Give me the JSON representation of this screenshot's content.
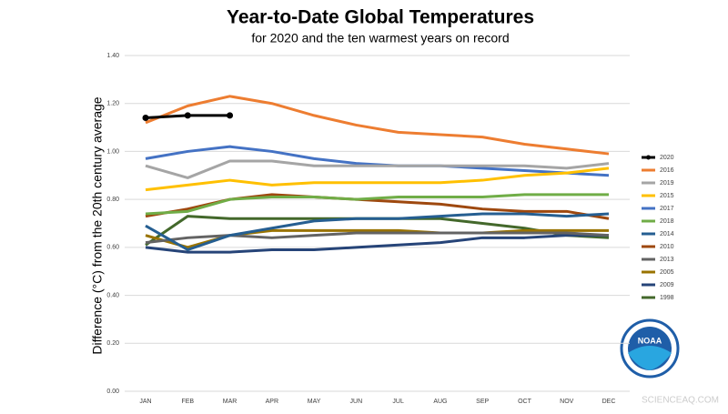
{
  "chart_data": {
    "type": "line",
    "title": "Year-to-Date Global Temperatures",
    "subtitle": "for 2020 and the ten warmest years on record",
    "y_label": "Difference (°C) from the 20th century average",
    "categories": [
      "JAN",
      "FEB",
      "MAR",
      "APR",
      "MAY",
      "JUN",
      "JUL",
      "AUG",
      "SEP",
      "OCT",
      "NOV",
      "DEC"
    ],
    "ylim": [
      0,
      1.4
    ],
    "yticks": [
      {
        "value": 0,
        "label": "0.00"
      },
      {
        "value": 0.2,
        "label": "0.20"
      },
      {
        "value": 0.4,
        "label": "0.40"
      },
      {
        "value": 0.6,
        "label": "0.60"
      },
      {
        "value": 0.8,
        "label": "0.80"
      },
      {
        "value": 1,
        "label": "1.00"
      },
      {
        "value": 1.2,
        "label": "1.20"
      },
      {
        "value": 1.4,
        "label": "1.40"
      }
    ],
    "grid": true,
    "legend": "right",
    "series": [
      {
        "name": "2020",
        "color": "#000000",
        "markers": true,
        "values": [
          1.14,
          1.15,
          1.15,
          null,
          null,
          null,
          null,
          null,
          null,
          null,
          null,
          null
        ]
      },
      {
        "name": "2016",
        "color": "#ed7d31",
        "values": [
          1.12,
          1.19,
          1.23,
          1.2,
          1.15,
          1.11,
          1.08,
          1.07,
          1.06,
          1.03,
          1.01,
          0.99
        ]
      },
      {
        "name": "2019",
        "color": "#a5a5a5",
        "values": [
          0.94,
          0.89,
          0.96,
          0.96,
          0.94,
          0.94,
          0.94,
          0.94,
          0.94,
          0.94,
          0.93,
          0.95
        ]
      },
      {
        "name": "2015",
        "color": "#ffc000",
        "values": [
          0.84,
          0.86,
          0.88,
          0.86,
          0.87,
          0.87,
          0.87,
          0.87,
          0.88,
          0.9,
          0.91,
          0.93
        ]
      },
      {
        "name": "2017",
        "color": "#4472c4",
        "values": [
          0.97,
          1.0,
          1.02,
          1.0,
          0.97,
          0.95,
          0.94,
          0.94,
          0.93,
          0.92,
          0.91,
          0.9
        ]
      },
      {
        "name": "2018",
        "color": "#70ad47",
        "values": [
          0.74,
          0.75,
          0.8,
          0.81,
          0.81,
          0.8,
          0.81,
          0.81,
          0.81,
          0.82,
          0.82,
          0.82
        ]
      },
      {
        "name": "2014",
        "color": "#255e91",
        "values": [
          0.69,
          0.59,
          0.65,
          0.68,
          0.71,
          0.72,
          0.72,
          0.73,
          0.74,
          0.74,
          0.73,
          0.74
        ]
      },
      {
        "name": "2010",
        "color": "#9e480e",
        "values": [
          0.73,
          0.76,
          0.8,
          0.82,
          0.81,
          0.8,
          0.79,
          0.78,
          0.76,
          0.75,
          0.75,
          0.72
        ]
      },
      {
        "name": "2013",
        "color": "#636363",
        "values": [
          0.62,
          0.64,
          0.65,
          0.64,
          0.65,
          0.66,
          0.66,
          0.66,
          0.66,
          0.66,
          0.66,
          0.65
        ]
      },
      {
        "name": "2005",
        "color": "#997300",
        "values": [
          0.65,
          0.6,
          0.65,
          0.67,
          0.67,
          0.67,
          0.67,
          0.66,
          0.66,
          0.67,
          0.67,
          0.67
        ]
      },
      {
        "name": "2009",
        "color": "#264478",
        "values": [
          0.6,
          0.58,
          0.58,
          0.59,
          0.59,
          0.6,
          0.61,
          0.62,
          0.64,
          0.64,
          0.65,
          0.65
        ]
      },
      {
        "name": "1998",
        "color": "#43682b",
        "values": [
          0.61,
          0.73,
          0.72,
          0.72,
          0.72,
          0.72,
          0.72,
          0.72,
          0.7,
          0.68,
          0.65,
          0.64
        ]
      }
    ]
  },
  "logo_text": "NOAA",
  "watermark": "SCIENCEAQ.COM"
}
